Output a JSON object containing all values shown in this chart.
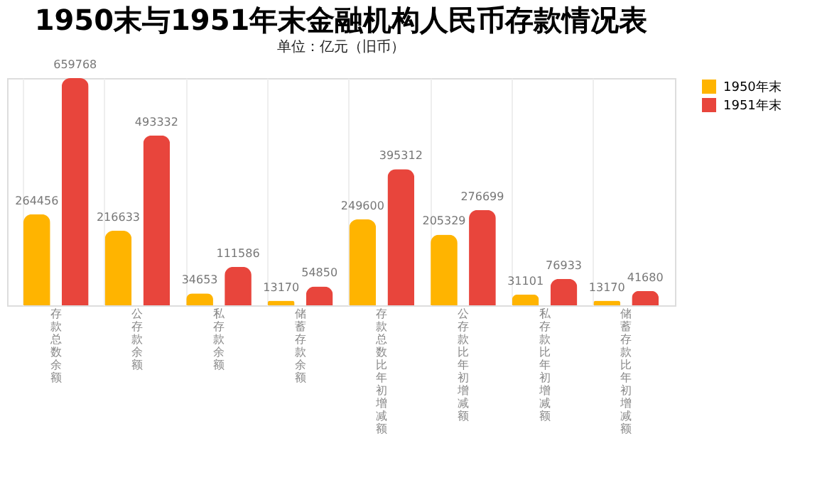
{
  "chart_data": {
    "type": "bar",
    "title": "1950末与1951年末金融机构人民币存款情况表",
    "subtitle": "单位：亿元（旧币）",
    "categories": [
      "存款总数余额",
      "公存款余额",
      "私存款余额",
      "储蓄存款余额",
      "存款总数比年初增减额",
      "公存款比年初增减额",
      "私存款比年初增减额",
      "储蓄存款比年初增减额"
    ],
    "series": [
      {
        "name": "1950年末",
        "color": "#ffb400",
        "values": [
          264456,
          216633,
          34653,
          13170,
          249600,
          205329,
          31101,
          13170
        ]
      },
      {
        "name": "1951年末",
        "color": "#e8453c",
        "values": [
          659768,
          493332,
          111586,
          54850,
          395312,
          276699,
          76933,
          41680
        ]
      }
    ],
    "data_labels": true,
    "legend": "right",
    "grid": "x"
  }
}
